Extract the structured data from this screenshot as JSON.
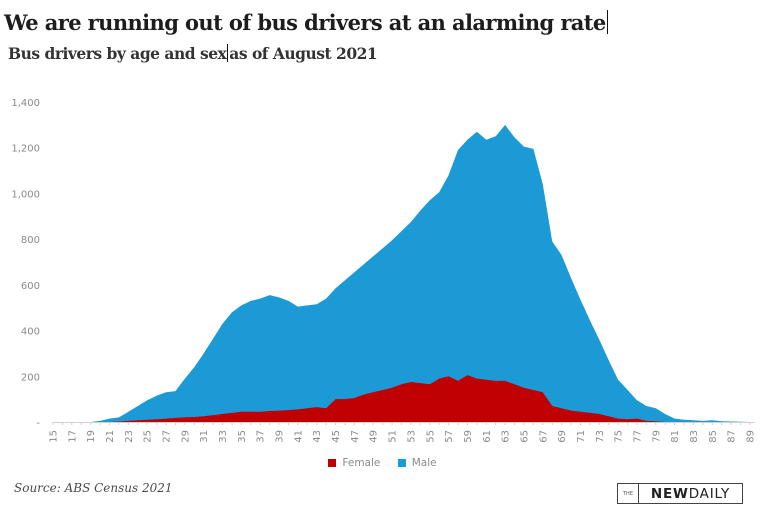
{
  "header": {
    "title": "We are running out of bus drivers at an alarming rate",
    "subtitle_part1": "Bus drivers by age and sex",
    "subtitle_part2": "as of August 2021"
  },
  "footer": {
    "source": "Source: ABS Census 2021",
    "logo_prefix": "THE",
    "logo_bold": "NEW",
    "logo_regular": "DAILY"
  },
  "colors": {
    "female": "#c00000",
    "male": "#1b9ad6"
  },
  "chart_data": {
    "type": "area",
    "title": "We are running out of bus drivers at an alarming rate",
    "subtitle": "Bus drivers by age and sex as of August 2021",
    "xlabel": "",
    "ylabel": "",
    "x": [
      15,
      16,
      17,
      18,
      19,
      20,
      21,
      22,
      23,
      24,
      25,
      26,
      27,
      28,
      29,
      30,
      31,
      32,
      33,
      34,
      35,
      36,
      37,
      38,
      39,
      40,
      41,
      42,
      43,
      44,
      45,
      46,
      47,
      48,
      49,
      50,
      51,
      52,
      53,
      54,
      55,
      56,
      57,
      58,
      59,
      60,
      61,
      62,
      63,
      64,
      65,
      66,
      67,
      68,
      69,
      70,
      71,
      72,
      73,
      74,
      75,
      76,
      77,
      78,
      79,
      80,
      81,
      82,
      83,
      84,
      85,
      86,
      87,
      88,
      89
    ],
    "x_tick_labels": [
      "15",
      "17",
      "19",
      "21",
      "23",
      "25",
      "27",
      "29",
      "31",
      "33",
      "35",
      "37",
      "39",
      "41",
      "43",
      "45",
      "47",
      "49",
      "51",
      "53",
      "55",
      "57",
      "59",
      "61",
      "63",
      "65",
      "67",
      "69",
      "71",
      "73",
      "75",
      "77",
      "79",
      "81",
      "83",
      "85",
      "87",
      "89"
    ],
    "y_tick_labels": [
      "-",
      "200",
      "400",
      "600",
      "800",
      "1,000",
      "1,200",
      "1,400"
    ],
    "ylim": [
      0,
      1400
    ],
    "xlim": [
      15,
      89
    ],
    "grid": false,
    "legend_position": "bottom",
    "series": [
      {
        "name": "Male",
        "color": "#1b9ad6",
        "values": [
          0,
          0,
          0,
          0,
          0,
          5,
          15,
          20,
          45,
          70,
          95,
          115,
          130,
          135,
          190,
          240,
          300,
          365,
          430,
          480,
          510,
          530,
          540,
          555,
          545,
          530,
          505,
          510,
          515,
          540,
          585,
          620,
          655,
          690,
          725,
          760,
          795,
          835,
          875,
          925,
          970,
          1005,
          1080,
          1190,
          1235,
          1270,
          1235,
          1250,
          1300,
          1245,
          1205,
          1195,
          1040,
          790,
          730,
          630,
          535,
          445,
          360,
          270,
          185,
          140,
          95,
          70,
          60,
          35,
          15,
          10,
          8,
          5,
          8,
          3,
          2,
          1,
          0
        ]
      },
      {
        "name": "Female",
        "color": "#c00000",
        "values": [
          0,
          0,
          0,
          0,
          0,
          0,
          0,
          2,
          5,
          8,
          10,
          12,
          15,
          18,
          20,
          22,
          25,
          30,
          35,
          40,
          45,
          45,
          45,
          48,
          50,
          52,
          55,
          60,
          65,
          60,
          100,
          100,
          105,
          120,
          130,
          140,
          150,
          165,
          175,
          170,
          165,
          190,
          200,
          180,
          205,
          190,
          185,
          180,
          180,
          165,
          150,
          140,
          130,
          70,
          60,
          50,
          45,
          40,
          35,
          25,
          15,
          12,
          15,
          5,
          3,
          0,
          0,
          0,
          0,
          0,
          0,
          0,
          0,
          0,
          0
        ]
      }
    ]
  }
}
